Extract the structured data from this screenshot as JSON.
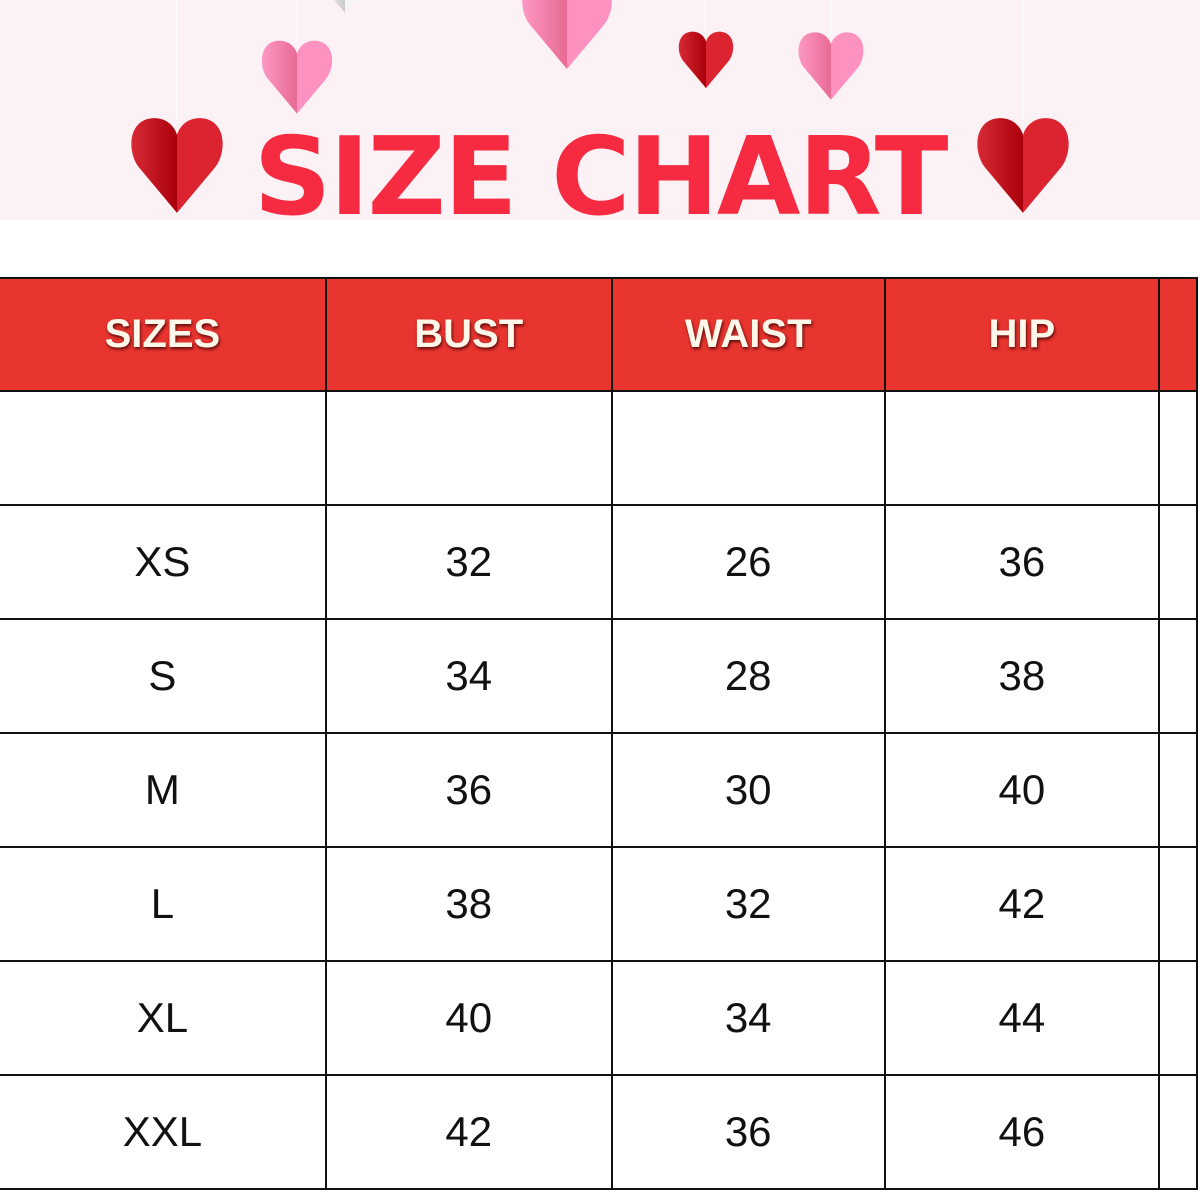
{
  "title": "SIZE CHART",
  "colors": {
    "title": "#f62a40",
    "header_bg": "#e9352f",
    "banner_bg": "#fcf1f4",
    "heart_red": "#dc2430",
    "heart_pink": "#fd91c0"
  },
  "decorations": [
    "heart-icon"
  ],
  "table": {
    "headers": [
      "SIZES",
      "BUST",
      "WAIST",
      "HIP"
    ],
    "rows": [
      [
        "",
        "",
        "",
        ""
      ],
      [
        "XS",
        "32",
        "26",
        "36"
      ],
      [
        "S",
        "34",
        "28",
        "38"
      ],
      [
        "M",
        "36",
        "30",
        "40"
      ],
      [
        "L",
        "38",
        "32",
        "42"
      ],
      [
        "XL",
        "40",
        "34",
        "44"
      ],
      [
        "XXL",
        "42",
        "36",
        "46"
      ]
    ]
  }
}
